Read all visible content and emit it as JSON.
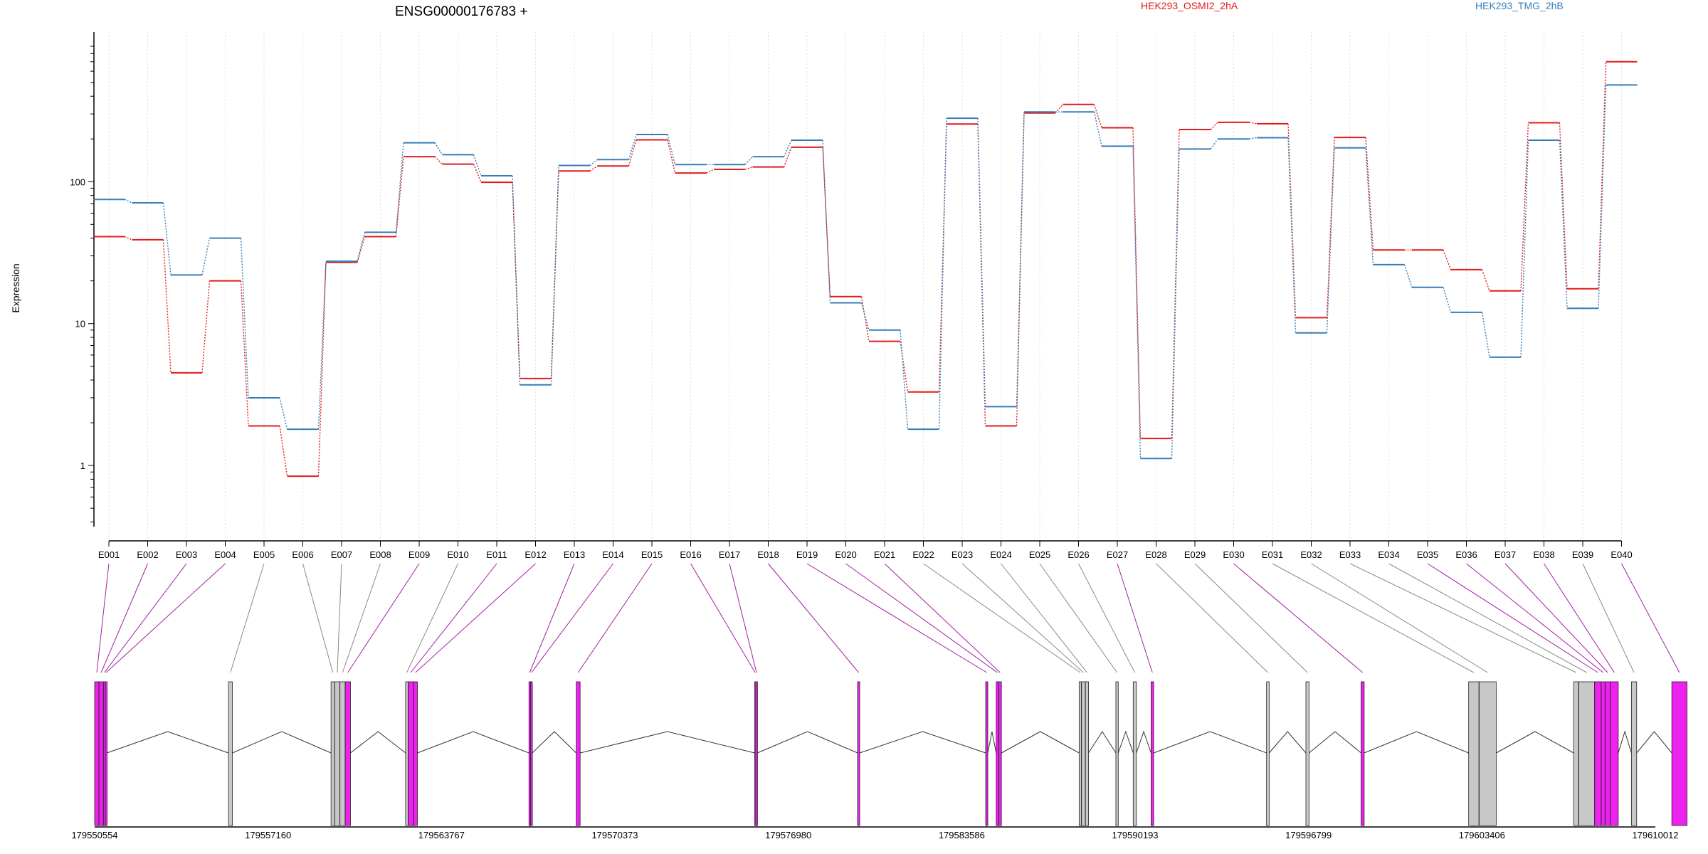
{
  "chart_data": {
    "type": "line",
    "title": "ENSG00000176783 +",
    "xlabel": "",
    "ylabel": "Expression",
    "y_scale": "log",
    "ylim": [
      0.35,
      900
    ],
    "y_ticks": [
      1,
      10,
      100
    ],
    "y_tick_labels": [
      "1",
      "10",
      "100"
    ],
    "grid": "vertical dotted per exon",
    "categories": [
      "E001",
      "E002",
      "E003",
      "E004",
      "E005",
      "E006",
      "E007",
      "E008",
      "E009",
      "E010",
      "E011",
      "E012",
      "E013",
      "E014",
      "E015",
      "E016",
      "E017",
      "E018",
      "E019",
      "E020",
      "E021",
      "E022",
      "E023",
      "E024",
      "E025",
      "E026",
      "E027",
      "E028",
      "E029",
      "E030",
      "E031",
      "E032",
      "E033",
      "E034",
      "E035",
      "E036",
      "E037",
      "E038",
      "E039",
      "E040"
    ],
    "series": [
      {
        "name": "HEK293_OSMI2_2hA",
        "color": "#e41a1c",
        "values": [
          41,
          39,
          4.5,
          20,
          1.9,
          0.84,
          27,
          41,
          150,
          133,
          99,
          4.1,
          119,
          129,
          197,
          115,
          122,
          127,
          175,
          15.5,
          7.5,
          3.3,
          255,
          1.9,
          305,
          350,
          240,
          1.55,
          233,
          262,
          256,
          11,
          205,
          33,
          33,
          24,
          17,
          260,
          17.6,
          700
        ]
      },
      {
        "name": "HEK293_TMG_2hB",
        "color": "#377eb8",
        "values": [
          75,
          71,
          22,
          40,
          3,
          1.8,
          27.5,
          44,
          188,
          155,
          110,
          3.7,
          130,
          143,
          215,
          132,
          132,
          150,
          196,
          14,
          9,
          1.8,
          280,
          2.6,
          310,
          310,
          178,
          1.12,
          170,
          200,
          204,
          8.6,
          173,
          26,
          18,
          12,
          5.8,
          196,
          12.8,
          480
        ]
      }
    ],
    "genomic_axis": {
      "tick_labels": [
        "179550554",
        "179557160",
        "179563767",
        "179570373",
        "179576980",
        "179583586",
        "179590193",
        "179596799",
        "179603406",
        "179610012"
      ],
      "range": [
        179550554,
        179610012
      ]
    },
    "exons": {
      "starts": [
        179550554,
        179550720,
        179550890,
        179550960,
        179555650,
        179559560,
        179559700,
        179559900,
        179560100,
        179562400,
        179562500,
        179562700,
        179567100,
        179567160,
        179568900,
        179575700,
        179575740,
        179579620,
        179584500,
        179584900,
        179585000,
        179588060,
        179588150,
        179588300,
        179589460,
        179590120,
        179590800,
        179595200,
        179596700,
        179598800,
        179602900,
        179603300,
        179606900,
        179607100,
        179607700,
        179607950,
        179608100,
        179608300,
        179609100,
        179610640
      ],
      "ends": [
        179550715,
        179550885,
        179550955,
        179551020,
        179555800,
        179559695,
        179559895,
        179560095,
        179560300,
        179562495,
        179562695,
        179562850,
        179567155,
        179567230,
        179569050,
        179575735,
        179575800,
        179579700,
        179584580,
        179584995,
        179585100,
        179588145,
        179588295,
        179588420,
        179589550,
        179590240,
        179590900,
        179595300,
        179596820,
        179598920,
        179603290,
        179603950,
        179607090,
        179607695,
        179607945,
        179608095,
        179608295,
        179608600,
        179609300,
        179611220
      ],
      "highlighted": [
        true,
        true,
        true,
        true,
        false,
        false,
        false,
        false,
        true,
        false,
        true,
        true,
        true,
        true,
        true,
        true,
        true,
        true,
        true,
        true,
        true,
        false,
        false,
        false,
        false,
        false,
        true,
        false,
        false,
        true,
        false,
        false,
        false,
        false,
        true,
        true,
        true,
        true,
        false,
        true
      ],
      "highlight_color": "#ee22ee",
      "plain_color": "#c8c8c8"
    }
  }
}
